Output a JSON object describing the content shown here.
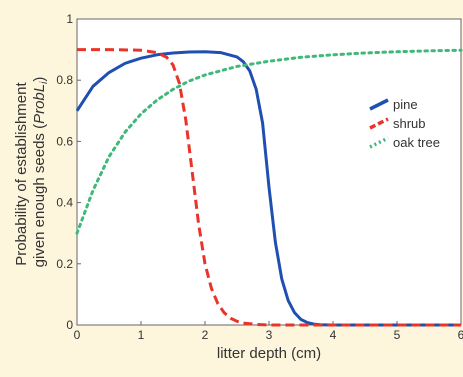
{
  "chart_data": {
    "type": "line",
    "title": "",
    "xlabel": "litter depth (cm)",
    "ylabel_line1": "Probability of establishment",
    "ylabel_line2_prefix": "given enough seeds (",
    "ylabel_line2_var": "ProbL",
    "ylabel_line2_sub": "i",
    "ylabel_line2_suffix": ")",
    "xlim": [
      0,
      6
    ],
    "ylim": [
      0,
      1
    ],
    "x_ticks": [
      0,
      1,
      2,
      3,
      4,
      5,
      6
    ],
    "x_tick_labels": [
      "0",
      "1",
      "2",
      "3",
      "4",
      "5",
      "6"
    ],
    "y_ticks": [
      0,
      0.2,
      0.4,
      0.6,
      0.8,
      1
    ],
    "y_tick_labels": [
      "0",
      "0.2",
      "0.4",
      "0.6",
      "0.8",
      "1"
    ],
    "grid": false,
    "legend_position": "right",
    "series": [
      {
        "name": "pine",
        "color": "#1f4fb0",
        "dash": "solid",
        "x": [
          0,
          0.25,
          0.5,
          0.75,
          1,
          1.25,
          1.5,
          1.75,
          2,
          2.25,
          2.5,
          2.6,
          2.7,
          2.8,
          2.9,
          3,
          3.1,
          3.2,
          3.3,
          3.4,
          3.5,
          3.6,
          3.7,
          3.8,
          4,
          4.5,
          5,
          5.5,
          6
        ],
        "y": [
          0.7,
          0.78,
          0.825,
          0.855,
          0.872,
          0.883,
          0.889,
          0.892,
          0.893,
          0.89,
          0.876,
          0.86,
          0.83,
          0.77,
          0.66,
          0.45,
          0.27,
          0.15,
          0.08,
          0.04,
          0.018,
          0.008,
          0.003,
          0.001,
          0,
          0,
          0,
          0,
          0
        ]
      },
      {
        "name": "shrub",
        "color": "#e8342a",
        "dash": "dashed",
        "x": [
          0,
          0.5,
          1,
          1.25,
          1.4,
          1.5,
          1.6,
          1.7,
          1.8,
          1.9,
          2,
          2.1,
          2.2,
          2.3,
          2.4,
          2.5,
          2.6,
          2.8,
          3,
          3.5,
          4,
          5,
          6
        ],
        "y": [
          0.9,
          0.9,
          0.898,
          0.89,
          0.875,
          0.85,
          0.79,
          0.67,
          0.5,
          0.33,
          0.2,
          0.12,
          0.07,
          0.04,
          0.022,
          0.012,
          0.006,
          0.002,
          0,
          0,
          0,
          0,
          0
        ]
      },
      {
        "name": "oak tree",
        "color": "#3fb87a",
        "dash": "dotted",
        "x": [
          0,
          0.25,
          0.5,
          0.75,
          1,
          1.25,
          1.5,
          1.75,
          2,
          2.5,
          3,
          3.5,
          4,
          4.5,
          5,
          5.5,
          6
        ],
        "y": [
          0.3,
          0.44,
          0.55,
          0.63,
          0.69,
          0.735,
          0.77,
          0.797,
          0.817,
          0.845,
          0.862,
          0.875,
          0.883,
          0.889,
          0.893,
          0.896,
          0.898
        ]
      }
    ]
  }
}
